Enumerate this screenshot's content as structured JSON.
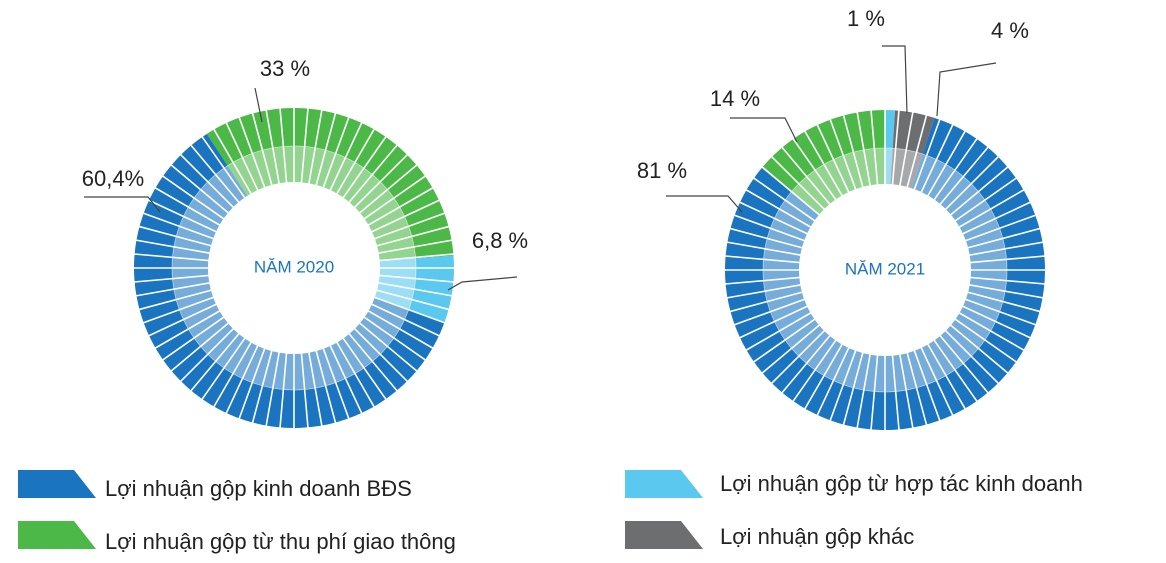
{
  "chart_data": [
    {
      "type": "pie",
      "title": "NĂM 2020",
      "values": [
        33,
        6.8,
        60.4
      ],
      "value_labels": [
        "33 %",
        "6,8 %",
        "60,4%"
      ],
      "colors": [
        "#4cb848",
        "#5bc8f0",
        "#1a74bf"
      ]
    },
    {
      "type": "pie",
      "title": "NĂM 2021",
      "values": [
        1,
        4,
        81,
        14
      ],
      "value_labels": [
        "1 %",
        "4 %",
        "81 %",
        "14 %"
      ],
      "colors": [
        "#5bc8f0",
        "#6d6e70",
        "#1a74bf",
        "#4cb848"
      ]
    }
  ],
  "legend": [
    {
      "name": "Lợi nhuận gộp kinh doanh BĐS",
      "color": "#1a74bf"
    },
    {
      "name": "Lợi nhuận gộp từ thu phí giao thông",
      "color": "#4cb848"
    },
    {
      "name": "Lợi nhuận gộp từ hợp tác kinh doanh",
      "color": "#5bc8f0"
    },
    {
      "name": "Lợi nhuận gộp khác",
      "color": "#6d6e70"
    }
  ]
}
